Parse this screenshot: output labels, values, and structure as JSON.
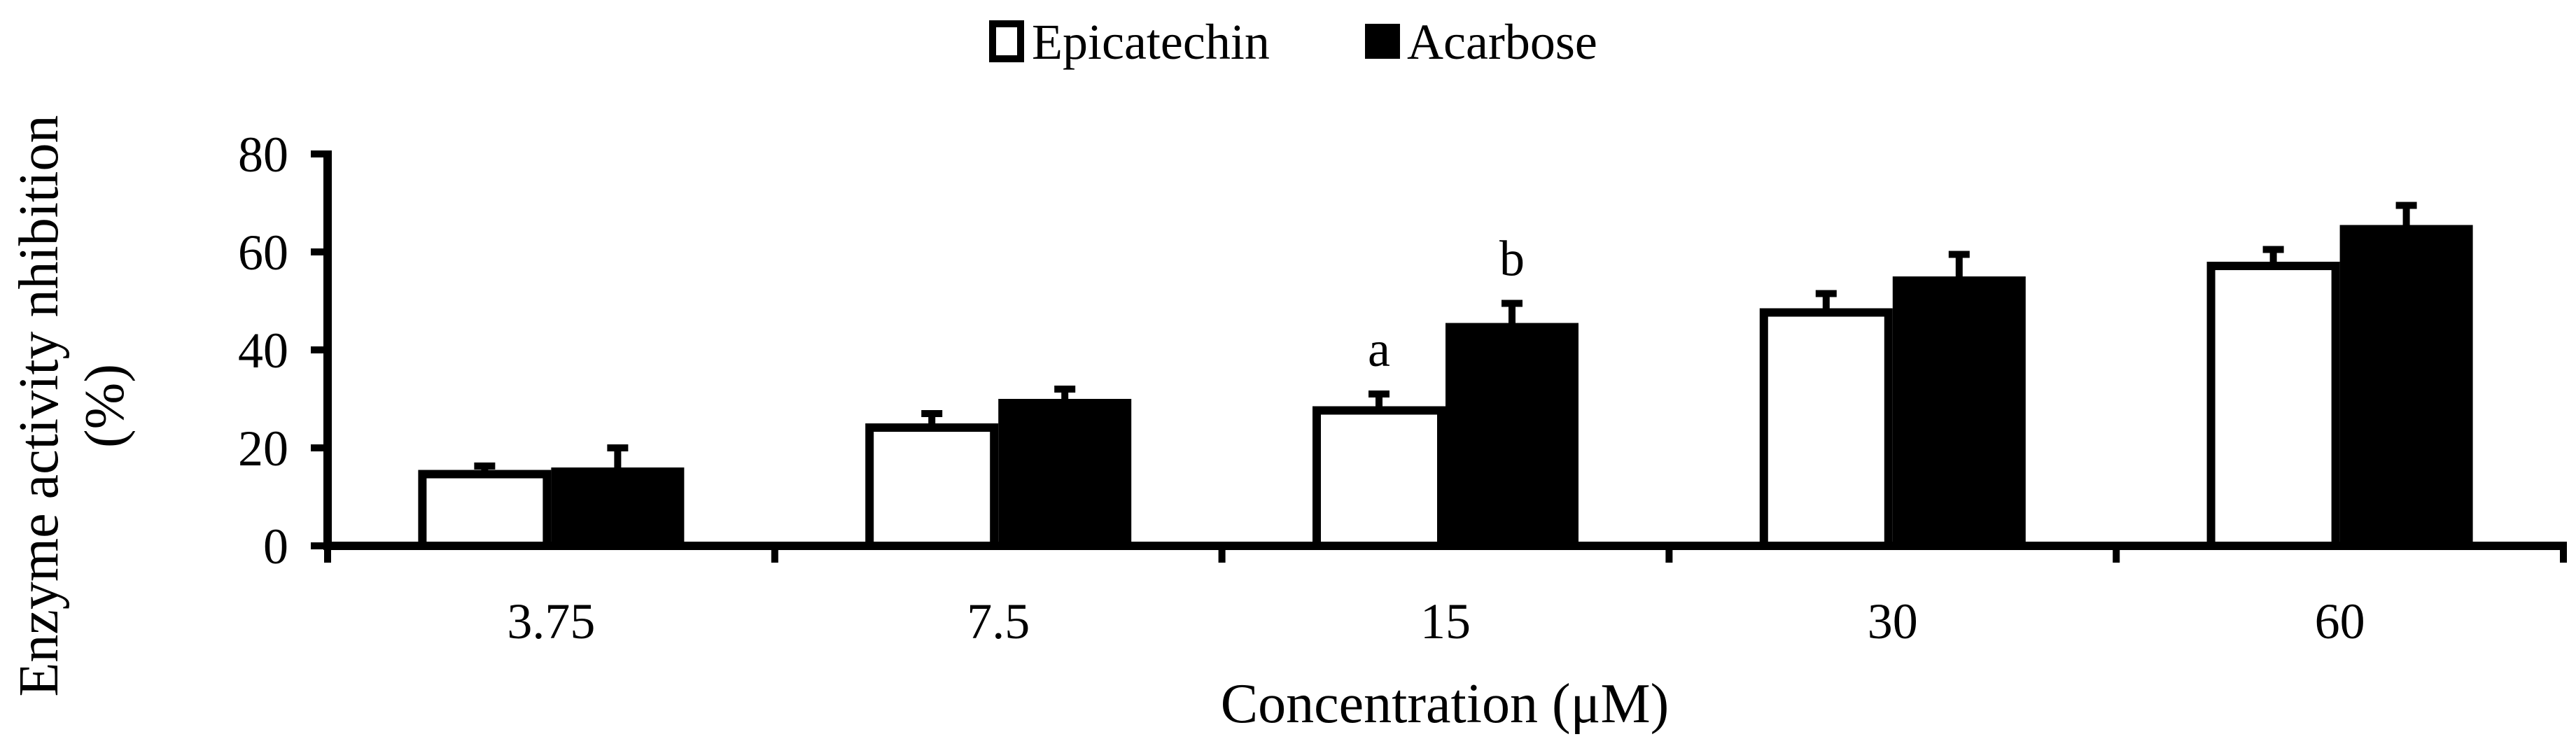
{
  "chart_data": {
    "type": "bar",
    "title": "",
    "xlabel": "Concentration (μM)",
    "ylabel_line1": "Enzyme activity nhibition",
    "ylabel_line2": "(%)",
    "categories": [
      "3.75",
      "7.5",
      "15",
      "30",
      "60"
    ],
    "series": [
      {
        "name": "Epicatechin",
        "fill": "#ffffff",
        "values": [
          15.5,
          25,
          28.5,
          48.5,
          58
        ],
        "errors": [
          0.8,
          2,
          2.5,
          3,
          2.5
        ]
      },
      {
        "name": "Acarbose",
        "fill": "#000000",
        "values": [
          16,
          30,
          45.5,
          55,
          65.5
        ],
        "errors": [
          4,
          2,
          4,
          4.5,
          4
        ]
      }
    ],
    "ylim": [
      0,
      80
    ],
    "yticks": [
      0,
      20,
      40,
      60,
      80
    ],
    "grid": false,
    "legend_position": "top-center",
    "annotations": [
      {
        "text": "a",
        "category": "15",
        "series": "Epicatechin"
      },
      {
        "text": "b",
        "category": "15",
        "series": "Acarbose"
      }
    ]
  }
}
